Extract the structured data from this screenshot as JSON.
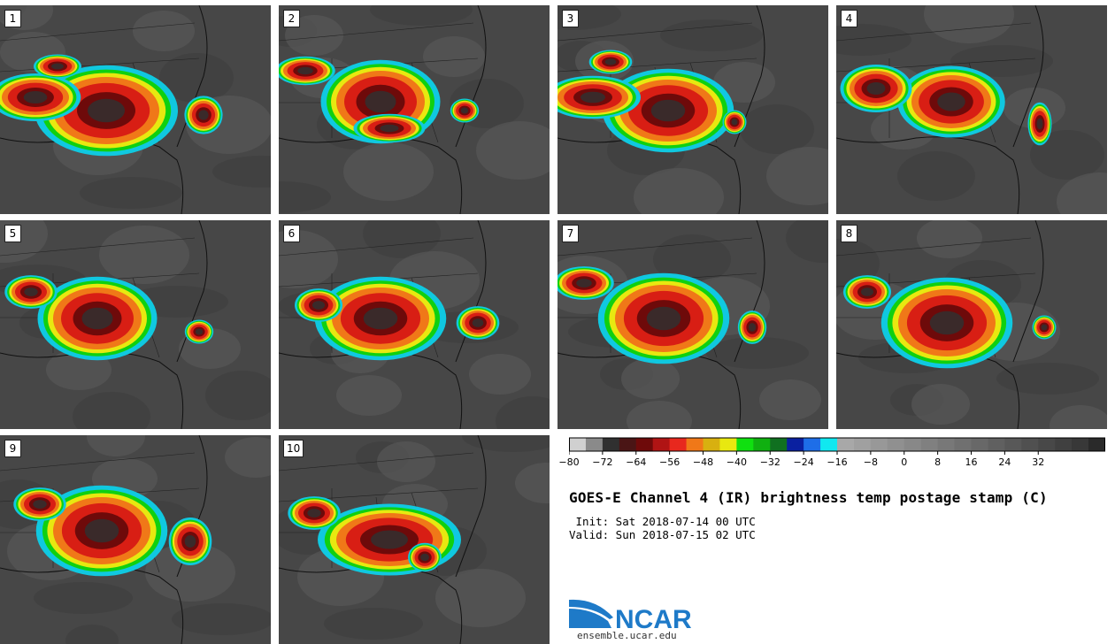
{
  "panels": [
    {
      "label": "1"
    },
    {
      "label": "2"
    },
    {
      "label": "3"
    },
    {
      "label": "4"
    },
    {
      "label": "5"
    },
    {
      "label": "6"
    },
    {
      "label": "7"
    },
    {
      "label": "8"
    },
    {
      "label": "9"
    },
    {
      "label": "10"
    }
  ],
  "colorbar": {
    "colors": [
      "#d0d0d0",
      "#8a8a8a",
      "#303030",
      "#4a1515",
      "#6e0a0a",
      "#b01414",
      "#e8281e",
      "#f07818",
      "#d8b010",
      "#e8e810",
      "#10e010",
      "#10b010",
      "#107020",
      "#0a20a0",
      "#1e6ee8",
      "#10e8f0",
      "#a8a8a8",
      "#a0a0a0",
      "#989898",
      "#909090",
      "#888888",
      "#808080",
      "#787878",
      "#707070",
      "#686868",
      "#606060",
      "#585858",
      "#505050",
      "#484848",
      "#404040",
      "#383838",
      "#2a2a2a"
    ],
    "tick_labels": [
      "−80",
      "−72",
      "−64",
      "−56",
      "−48",
      "−40",
      "−32",
      "−24",
      "−16",
      "−8",
      "0",
      "8",
      "16",
      "24",
      "32"
    ]
  },
  "title": "GOES-E Channel 4 (IR) brightness temp postage stamp (C)",
  "init": " Init: Sat 2018-07-14 00 UTC",
  "valid": "Valid: Sun 2018-07-15 02 UTC",
  "logo": {
    "text": "NCAR",
    "url": "ensemble.ucar.edu",
    "color": "#1e7ac8"
  }
}
